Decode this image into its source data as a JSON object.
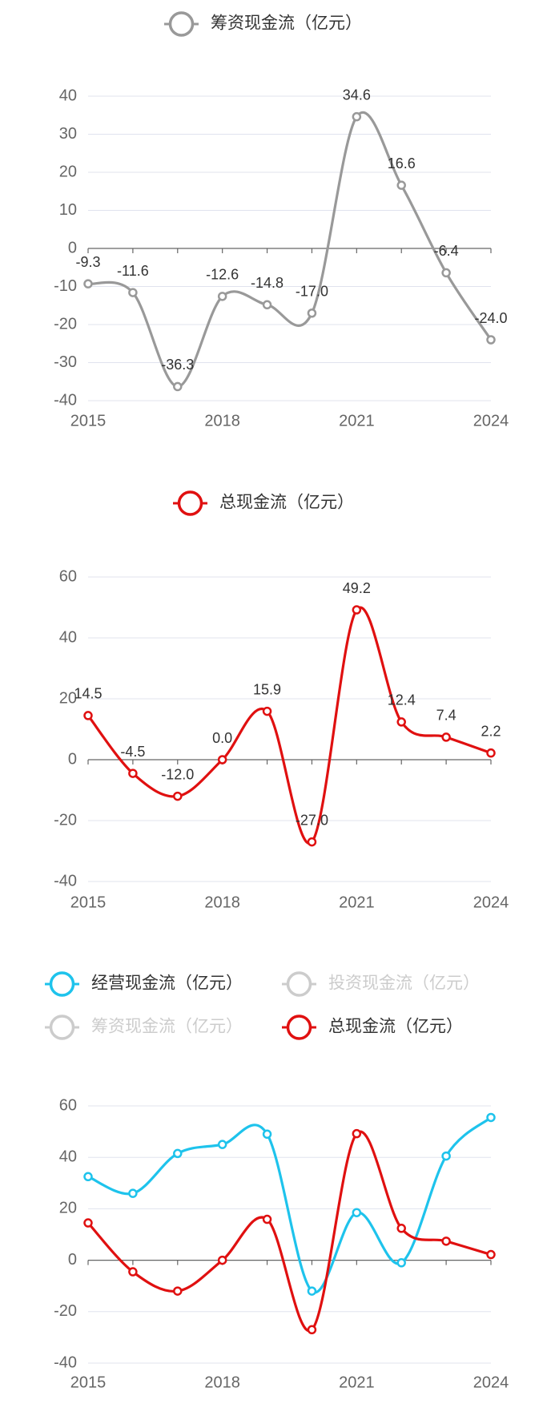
{
  "chart_data": [
    {
      "type": "line",
      "legend": "top",
      "categories": [
        "2015",
        null,
        null,
        "2018",
        null,
        null,
        "2021",
        null,
        null,
        "2024"
      ],
      "series": [
        {
          "name": "筹资现金流（亿元）",
          "color": "#999999",
          "values": [
            -9.3,
            -11.6,
            -36.3,
            -12.6,
            -14.8,
            -17.0,
            34.6,
            16.6,
            -6.4,
            -24.0
          ],
          "value_labels": [
            "-9.3",
            "-11.6",
            "-36.3",
            "-12.6",
            "-14.8",
            "-17.0",
            "34.6",
            "16.6",
            "-6.4",
            "-24.0"
          ]
        }
      ],
      "ylim": [
        -40,
        40
      ],
      "yticks": [
        -40,
        -30,
        -20,
        -10,
        0,
        10,
        20,
        30,
        40
      ],
      "grid": true
    },
    {
      "type": "line",
      "legend": "top",
      "categories": [
        "2015",
        null,
        null,
        "2018",
        null,
        null,
        "2021",
        null,
        null,
        "2024"
      ],
      "series": [
        {
          "name": "总现金流（亿元）",
          "color": "#e01010",
          "values": [
            14.5,
            -4.5,
            -12.0,
            0.0,
            15.9,
            -27.0,
            49.2,
            12.4,
            7.4,
            2.2
          ],
          "value_labels": [
            "14.5",
            "-4.5",
            "-12.0",
            "0.0",
            "15.9",
            "-27.0",
            "49.2",
            "12.4",
            "7.4",
            "2.2"
          ]
        }
      ],
      "ylim": [
        -40,
        60
      ],
      "yticks": [
        -40,
        -20,
        0,
        20,
        40,
        60
      ],
      "grid": true
    },
    {
      "type": "line",
      "legend": "top",
      "categories": [
        "2015",
        null,
        null,
        "2018",
        null,
        null,
        "2021",
        null,
        null,
        "2024"
      ],
      "series": [
        {
          "name": "经营现金流（亿元）",
          "color": "#1ec3ec",
          "values": [
            32.5,
            26,
            41.5,
            45,
            49,
            -12,
            18.5,
            -1,
            40.5,
            55.5
          ]
        },
        {
          "name": "投资现金流（亿元）",
          "visible": false
        },
        {
          "name": "筹资现金流（亿元）",
          "visible": false
        },
        {
          "name": "总现金流（亿元）",
          "color": "#e01010",
          "values": [
            14.5,
            -4.5,
            -12.0,
            0.0,
            15.9,
            -27.0,
            49.2,
            12.4,
            7.4,
            2.2
          ]
        }
      ],
      "ylim": [
        -40,
        60
      ],
      "yticks": [
        -40,
        -20,
        0,
        20,
        40,
        60
      ],
      "grid": true
    }
  ]
}
